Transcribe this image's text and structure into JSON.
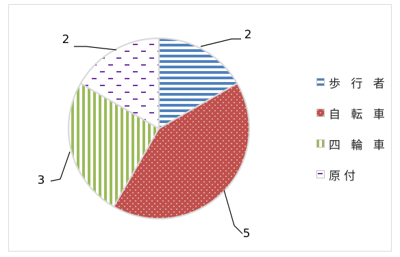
{
  "chart_data": {
    "type": "pie",
    "categories": [
      "歩 行 者",
      "自 転 車",
      "四 輪 車",
      "原付"
    ],
    "values": [
      2,
      5,
      3,
      2
    ],
    "data_labels": [
      "2",
      "5",
      "3",
      "2"
    ],
    "colors": [
      "#4f81bd",
      "#c0504d",
      "#9bbb59",
      "#8064a2"
    ],
    "patterns": [
      "horizontal-stripes",
      "dots",
      "vertical-stripes",
      "dashes"
    ],
    "start_angle_deg": 0,
    "direction": "clockwise",
    "legend_position": "right",
    "title": ""
  }
}
